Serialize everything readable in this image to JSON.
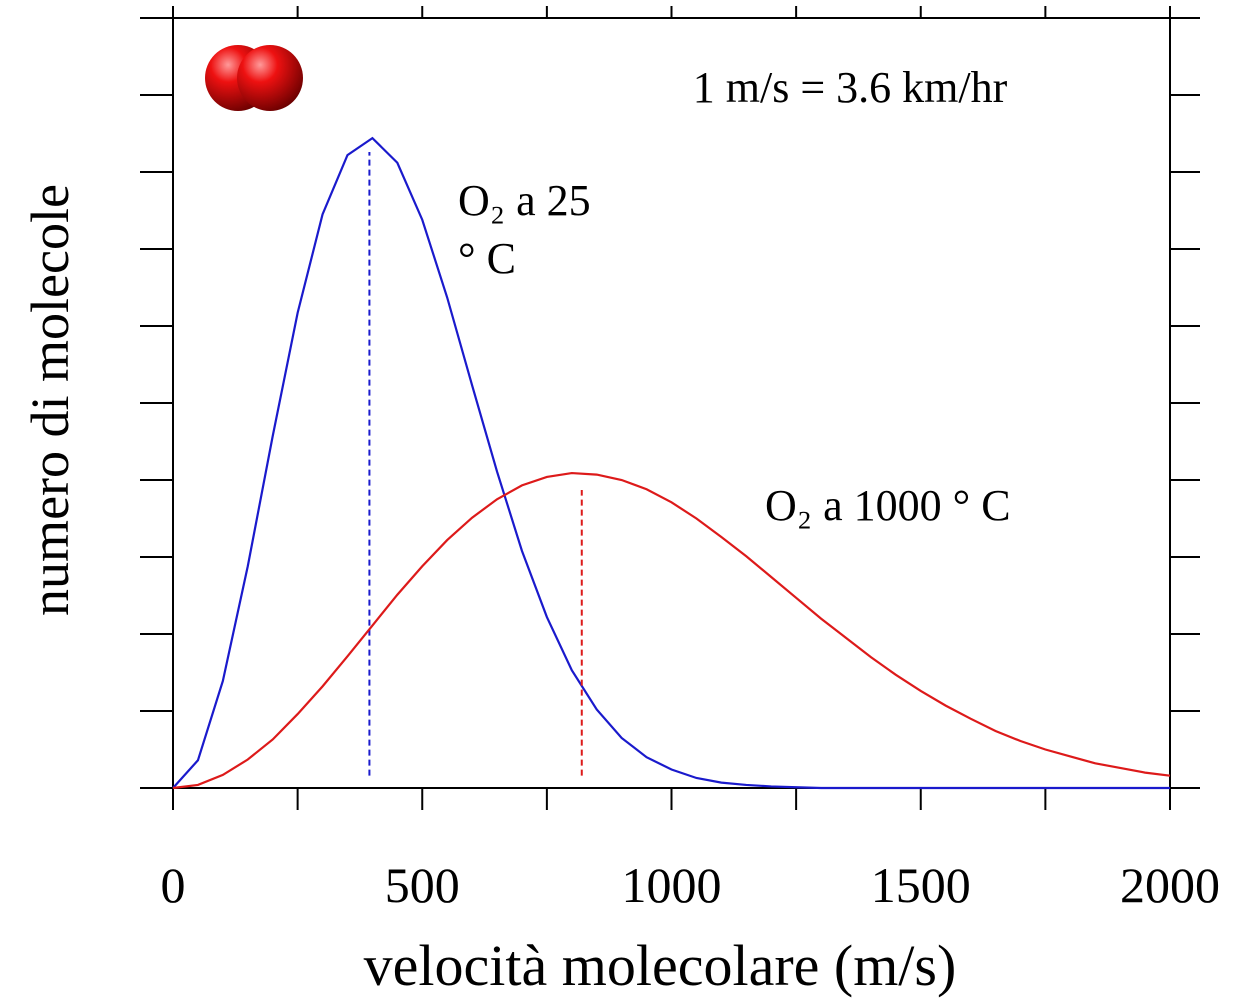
{
  "chart_data": {
    "type": "line",
    "xlabel": "velocità molecolare (m/s)",
    "ylabel": "numero di molecole",
    "annotation": "1 m/s = 3.6 km/hr",
    "xlim": [
      0,
      2000
    ],
    "xticks": [
      0,
      500,
      1000,
      1500,
      2000
    ],
    "xminor_ticks": [
      250,
      750,
      1250,
      1750
    ],
    "ylim": [
      0,
      10
    ],
    "yticks": [
      0,
      1,
      2,
      3,
      4,
      5,
      6,
      7,
      8,
      9,
      10
    ],
    "x": [
      0,
      50,
      100,
      150,
      200,
      250,
      300,
      350,
      400,
      450,
      500,
      550,
      600,
      650,
      700,
      750,
      800,
      850,
      900,
      950,
      1000,
      1050,
      1100,
      1150,
      1200,
      1250,
      1300,
      1350,
      1400,
      1450,
      1500,
      1550,
      1600,
      1650,
      1700,
      1750,
      1800,
      1850,
      1900,
      1950,
      2000
    ],
    "series": [
      {
        "label_lines": [
          "O₂ a 25",
          "°  C"
        ],
        "color": "#1a1acc",
        "values": [
          0,
          0.36,
          1.39,
          2.88,
          4.57,
          6.17,
          7.45,
          8.22,
          8.44,
          8.12,
          7.38,
          6.37,
          5.23,
          4.11,
          3.08,
          2.22,
          1.53,
          1.02,
          0.65,
          0.4,
          0.24,
          0.13,
          0.07,
          0.04,
          0.02,
          0.01,
          0,
          0,
          0,
          0,
          0,
          0,
          0,
          0,
          0,
          0,
          0,
          0,
          0,
          0,
          0
        ],
        "dashed_line": {
          "x": 394,
          "y_bottom": 0.16,
          "y_top": 8.26
        }
      },
      {
        "label_lines": [
          "O₂ a 1000 °  C"
        ],
        "color": "#dd1a1a",
        "values": [
          0,
          0.04,
          0.17,
          0.37,
          0.63,
          0.96,
          1.32,
          1.71,
          2.11,
          2.51,
          2.88,
          3.22,
          3.51,
          3.75,
          3.93,
          4.04,
          4.09,
          4.07,
          4.0,
          3.88,
          3.71,
          3.5,
          3.26,
          3.01,
          2.74,
          2.47,
          2.2,
          1.95,
          1.7,
          1.47,
          1.26,
          1.07,
          0.9,
          0.74,
          0.61,
          0.5,
          0.41,
          0.32,
          0.26,
          0.2,
          0.16
        ],
        "dashed_line": {
          "x": 820,
          "y_bottom": 0.16,
          "y_top": 3.87
        }
      }
    ]
  }
}
